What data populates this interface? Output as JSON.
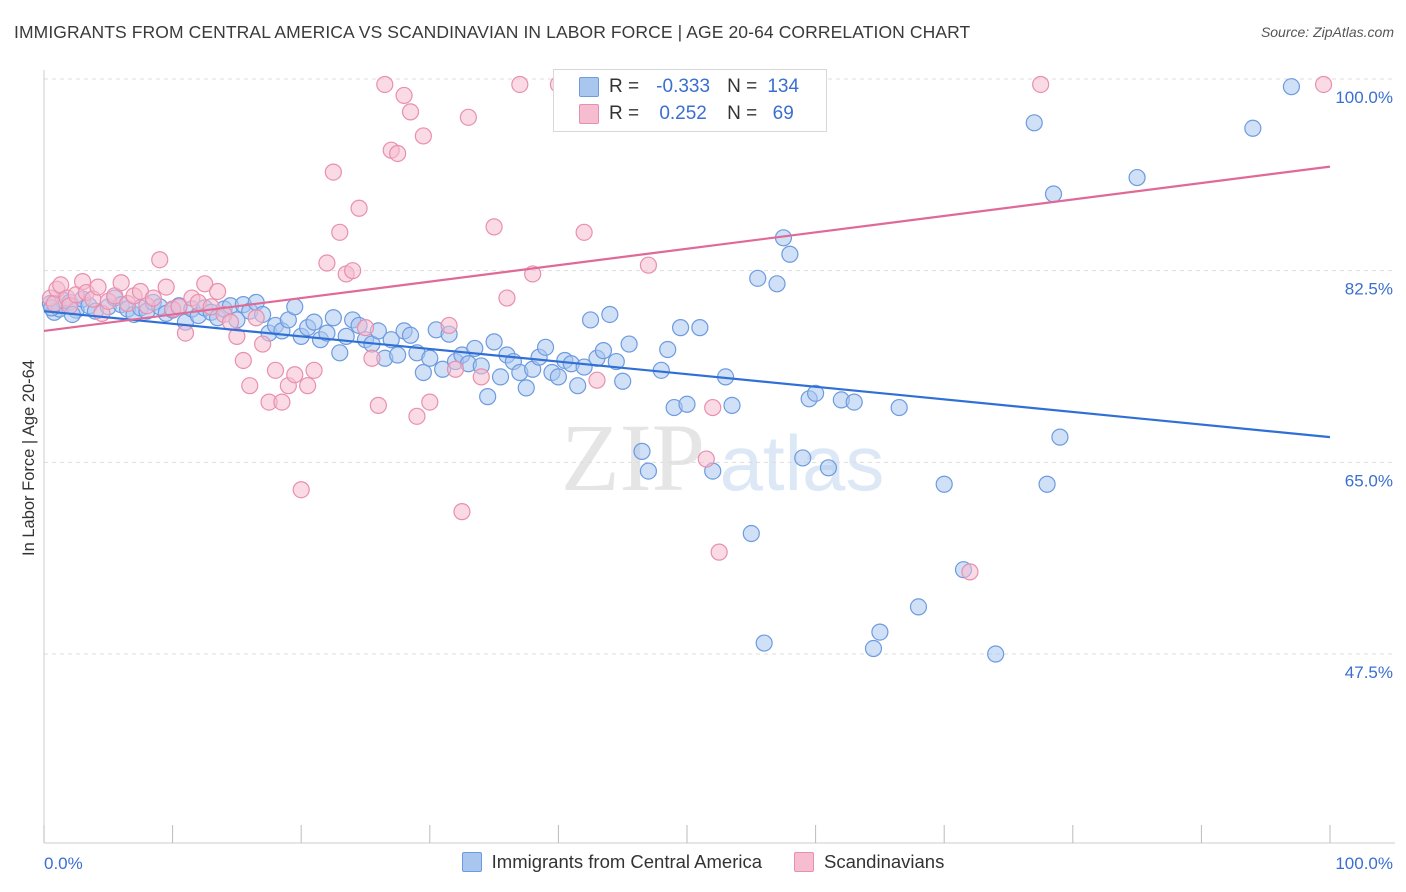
{
  "header": {
    "title": "IMMIGRANTS FROM CENTRAL AMERICA VS SCANDINAVIAN IN LABOR FORCE | AGE 20-64 CORRELATION CHART",
    "source": "Source: ZipAtlas.com"
  },
  "watermark": {
    "zip": "ZIP",
    "atlas": "atlas"
  },
  "legend": {
    "r_label": "R =",
    "n_label": "N =",
    "rows": [
      {
        "r": "-0.333",
        "n": "134"
      },
      {
        "r": "0.252",
        "n": "69"
      }
    ]
  },
  "colors": {
    "blue_fill": "#a9c6ef",
    "blue_stroke": "#6d9be0",
    "blue_line": "#2f6fd6",
    "pink_fill": "#f6bcd0",
    "pink_stroke": "#e98fae",
    "pink_line": "#e06a97",
    "tick_label": "#3a6fd0",
    "grid": "#dddddd"
  },
  "chart_data": {
    "type": "scatter",
    "xlabel": "",
    "ylabel": "In Labor Force | Age 20-64",
    "xlim": [
      0,
      100
    ],
    "ylim": [
      30,
      102
    ],
    "x_tick_labels": [
      "0.0%",
      "100.0%"
    ],
    "y_ticks": [
      47.5,
      65.0,
      82.5,
      100.0
    ],
    "y_tick_labels": [
      "47.5%",
      "65.0%",
      "82.5%",
      "100.0%"
    ],
    "grid": true,
    "legend_position": "top-center",
    "series": [
      {
        "name": "Immigrants from Central America",
        "color": "#6d9be0",
        "trend": {
          "x": [
            0,
            100
          ],
          "y": [
            78.8,
            67.3
          ]
        },
        "points": [
          [
            0.5,
            79.5
          ],
          [
            0.8,
            78.7
          ],
          [
            1.2,
            79.0
          ],
          [
            1.5,
            79.8
          ],
          [
            2.0,
            79.6
          ],
          [
            2.5,
            78.9
          ],
          [
            3.0,
            79.9
          ],
          [
            3.5,
            79.3
          ],
          [
            4.0,
            78.8
          ],
          [
            5.0,
            79.2
          ],
          [
            5.5,
            80.0
          ],
          [
            6.0,
            79.4
          ],
          [
            6.5,
            79.0
          ],
          [
            7.0,
            78.5
          ],
          [
            7.5,
            79.1
          ],
          [
            8.0,
            78.8
          ],
          [
            8.5,
            79.6
          ],
          [
            9.0,
            79.2
          ],
          [
            9.5,
            78.6
          ],
          [
            10.0,
            78.9
          ],
          [
            10.5,
            79.3
          ],
          [
            11.0,
            77.8
          ],
          [
            11.5,
            79.0
          ],
          [
            12.0,
            78.4
          ],
          [
            12.5,
            79.1
          ],
          [
            13.0,
            78.7
          ],
          [
            13.5,
            78.2
          ],
          [
            14.0,
            79.0
          ],
          [
            14.5,
            79.3
          ],
          [
            15.0,
            78.0
          ],
          [
            15.5,
            79.4
          ],
          [
            16.0,
            78.8
          ],
          [
            16.5,
            79.6
          ],
          [
            17.0,
            78.5
          ],
          [
            17.5,
            76.8
          ],
          [
            18.0,
            77.5
          ],
          [
            18.5,
            77.0
          ],
          [
            19.0,
            78.0
          ],
          [
            19.5,
            79.2
          ],
          [
            20.0,
            76.5
          ],
          [
            20.5,
            77.3
          ],
          [
            21.0,
            77.8
          ],
          [
            21.5,
            76.2
          ],
          [
            22.0,
            76.8
          ],
          [
            22.5,
            78.2
          ],
          [
            23.0,
            75.0
          ],
          [
            23.5,
            76.5
          ],
          [
            24.0,
            78.0
          ],
          [
            24.5,
            77.5
          ],
          [
            25.0,
            76.2
          ],
          [
            25.5,
            75.8
          ],
          [
            26.0,
            77.0
          ],
          [
            26.5,
            74.5
          ],
          [
            27.0,
            76.2
          ],
          [
            27.5,
            74.8
          ],
          [
            28.0,
            77.0
          ],
          [
            28.5,
            76.6
          ],
          [
            29.0,
            75.0
          ],
          [
            29.5,
            73.2
          ],
          [
            30.0,
            74.5
          ],
          [
            30.5,
            77.1
          ],
          [
            31.0,
            73.5
          ],
          [
            31.5,
            76.7
          ],
          [
            32.0,
            74.2
          ],
          [
            32.5,
            74.8
          ],
          [
            33.0,
            74.0
          ],
          [
            33.5,
            75.4
          ],
          [
            34.0,
            73.8
          ],
          [
            34.5,
            71.0
          ],
          [
            35.0,
            76.0
          ],
          [
            35.5,
            72.8
          ],
          [
            36.0,
            74.8
          ],
          [
            36.5,
            74.2
          ],
          [
            37.0,
            73.2
          ],
          [
            37.5,
            71.8
          ],
          [
            38.0,
            73.5
          ],
          [
            38.5,
            74.6
          ],
          [
            39.0,
            75.5
          ],
          [
            39.5,
            73.2
          ],
          [
            40.0,
            72.8
          ],
          [
            40.5,
            74.3
          ],
          [
            41.0,
            74.0
          ],
          [
            41.5,
            72.0
          ],
          [
            42.0,
            73.7
          ],
          [
            42.5,
            78.0
          ],
          [
            43.0,
            74.5
          ],
          [
            43.5,
            75.2
          ],
          [
            44.0,
            78.5
          ],
          [
            44.5,
            74.2
          ],
          [
            45.0,
            72.4
          ],
          [
            45.5,
            75.8
          ],
          [
            46.5,
            66.0
          ],
          [
            47.0,
            64.2
          ],
          [
            48.0,
            73.4
          ],
          [
            48.5,
            75.3
          ],
          [
            49.0,
            70.0
          ],
          [
            49.5,
            77.3
          ],
          [
            50.0,
            70.3
          ],
          [
            51.0,
            77.3
          ],
          [
            52.0,
            64.2
          ],
          [
            53.0,
            72.8
          ],
          [
            53.5,
            70.2
          ],
          [
            55.0,
            58.5
          ],
          [
            55.5,
            81.8
          ],
          [
            56.0,
            48.5
          ],
          [
            57.0,
            81.3
          ],
          [
            57.5,
            85.5
          ],
          [
            58.0,
            84.0
          ],
          [
            59.0,
            65.4
          ],
          [
            59.5,
            70.8
          ],
          [
            60.0,
            71.3
          ],
          [
            61.0,
            64.5
          ],
          [
            62.0,
            70.7
          ],
          [
            63.0,
            70.5
          ],
          [
            64.5,
            48.0
          ],
          [
            65.0,
            49.5
          ],
          [
            66.5,
            70.0
          ],
          [
            68.0,
            51.8
          ],
          [
            70.0,
            63.0
          ],
          [
            71.5,
            55.2
          ],
          [
            74.0,
            47.5
          ],
          [
            77.0,
            96.0
          ],
          [
            78.0,
            63.0
          ],
          [
            78.5,
            89.5
          ],
          [
            79.0,
            67.3
          ],
          [
            85.0,
            91.0
          ],
          [
            94.0,
            95.5
          ],
          [
            97.0,
            99.3
          ],
          [
            0.6,
            79.1
          ],
          [
            2.2,
            78.5
          ]
        ]
      },
      {
        "name": "Scandinavians",
        "color": "#e98fae",
        "trend": {
          "x": [
            0,
            100
          ],
          "y": [
            77.0,
            92.0
          ]
        },
        "points": [
          [
            0.5,
            80.0
          ],
          [
            0.8,
            79.5
          ],
          [
            1.0,
            80.8
          ],
          [
            1.3,
            81.2
          ],
          [
            1.8,
            80.0
          ],
          [
            2.0,
            79.3
          ],
          [
            2.5,
            80.3
          ],
          [
            3.0,
            81.5
          ],
          [
            3.3,
            80.5
          ],
          [
            3.8,
            79.9
          ],
          [
            4.2,
            81.0
          ],
          [
            4.5,
            78.6
          ],
          [
            5.0,
            79.7
          ],
          [
            5.5,
            80.2
          ],
          [
            6.0,
            81.4
          ],
          [
            6.5,
            79.5
          ],
          [
            7.0,
            80.2
          ],
          [
            7.5,
            80.6
          ],
          [
            8.0,
            79.3
          ],
          [
            8.5,
            80.0
          ],
          [
            9.0,
            83.5
          ],
          [
            9.5,
            81.0
          ],
          [
            10.0,
            79.0
          ],
          [
            10.5,
            79.2
          ],
          [
            11.0,
            76.8
          ],
          [
            11.5,
            80.0
          ],
          [
            12.0,
            79.6
          ],
          [
            12.5,
            81.3
          ],
          [
            13.0,
            79.2
          ],
          [
            13.5,
            80.6
          ],
          [
            14.0,
            78.5
          ],
          [
            14.5,
            77.8
          ],
          [
            15.0,
            76.5
          ],
          [
            15.5,
            74.3
          ],
          [
            16.0,
            72.0
          ],
          [
            16.5,
            78.2
          ],
          [
            17.0,
            75.8
          ],
          [
            17.5,
            70.5
          ],
          [
            18.0,
            73.4
          ],
          [
            18.5,
            70.5
          ],
          [
            19.0,
            72.0
          ],
          [
            19.5,
            73.0
          ],
          [
            20.0,
            62.5
          ],
          [
            20.5,
            72.0
          ],
          [
            21.0,
            73.4
          ],
          [
            22.0,
            83.2
          ],
          [
            22.5,
            91.5
          ],
          [
            23.0,
            86.0
          ],
          [
            23.5,
            82.2
          ],
          [
            24.0,
            82.5
          ],
          [
            24.5,
            88.2
          ],
          [
            25.0,
            77.3
          ],
          [
            25.5,
            74.5
          ],
          [
            26.0,
            70.2
          ],
          [
            26.5,
            99.5
          ],
          [
            27.0,
            93.5
          ],
          [
            27.5,
            93.2
          ],
          [
            28.0,
            98.5
          ],
          [
            28.5,
            97.0
          ],
          [
            29.0,
            69.2
          ],
          [
            29.5,
            94.8
          ],
          [
            30.0,
            70.5
          ],
          [
            31.5,
            77.5
          ],
          [
            32.0,
            73.5
          ],
          [
            32.5,
            60.5
          ],
          [
            33.0,
            96.5
          ],
          [
            34.0,
            72.8
          ],
          [
            35.0,
            86.5
          ],
          [
            36.0,
            80.0
          ],
          [
            37.0,
            99.5
          ],
          [
            38.0,
            82.2
          ],
          [
            40.0,
            99.5
          ],
          [
            42.0,
            86.0
          ],
          [
            43.0,
            72.5
          ],
          [
            46.0,
            99.5
          ],
          [
            47.0,
            83.0
          ],
          [
            49.0,
            97.0
          ],
          [
            51.5,
            65.3
          ],
          [
            52.0,
            70.0
          ],
          [
            52.5,
            56.8
          ],
          [
            53.0,
            98.3
          ],
          [
            59.5,
            99.5
          ],
          [
            72.0,
            55.0
          ],
          [
            77.5,
            99.5
          ],
          [
            99.5,
            99.5
          ]
        ]
      }
    ]
  }
}
